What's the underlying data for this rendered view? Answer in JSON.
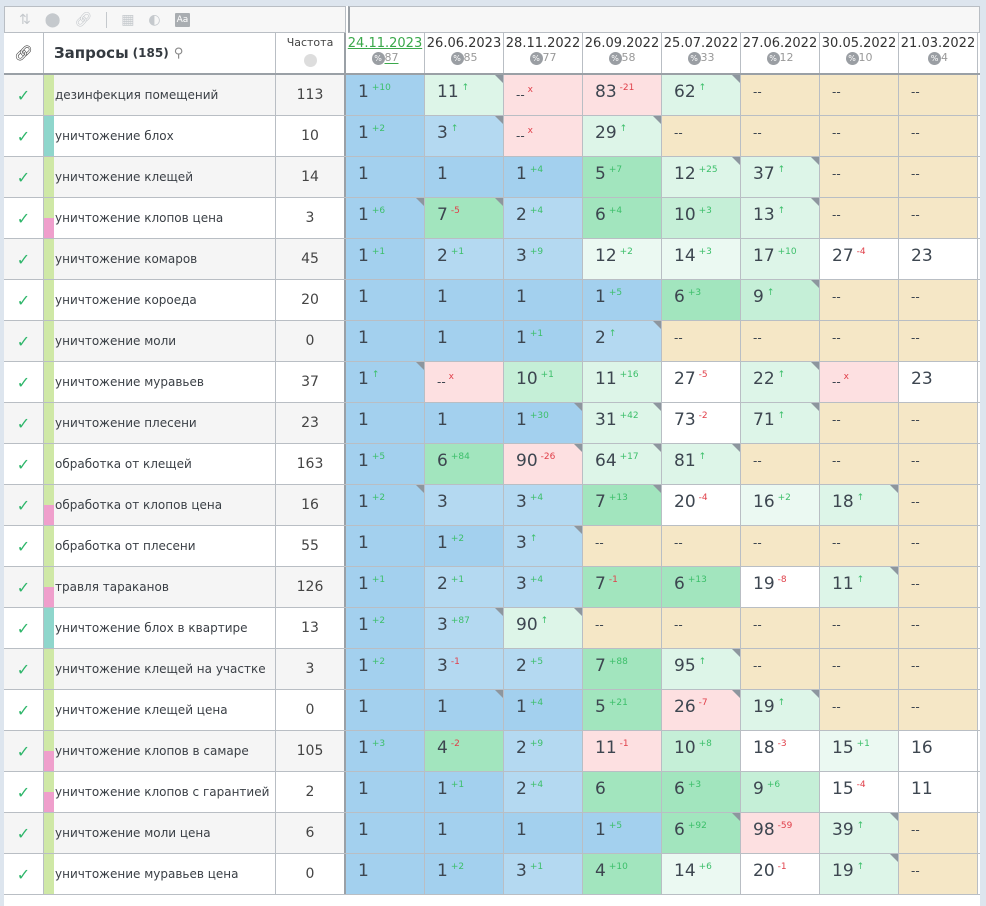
{
  "toolbar": {
    "icons": [
      "sort-icon",
      "toggle-icon",
      "link-icon",
      "calendar-icon",
      "contrast-icon",
      "font-icon"
    ],
    "font_label": "Aa"
  },
  "header": {
    "title": "Запросы",
    "count": "(185)",
    "freq_label": "Частота",
    "pct_symbol": "%",
    "dates": [
      {
        "date": "24.11.2023",
        "pct": "87",
        "active": true
      },
      {
        "date": "26.06.2023",
        "pct": "85"
      },
      {
        "date": "28.11.2022",
        "pct": "77"
      },
      {
        "date": "26.09.2022",
        "pct": "58"
      },
      {
        "date": "25.07.2022",
        "pct": "33"
      },
      {
        "date": "27.06.2022",
        "pct": "12"
      },
      {
        "date": "30.05.2022",
        "pct": "10"
      },
      {
        "date": "21.03.2022",
        "pct": "4"
      }
    ]
  },
  "colors": {
    "lime": "#cfe8a6",
    "teal": "#8fd6cc",
    "pink": "#ef9fcc",
    "check": "#2eb66a"
  },
  "rows": [
    {
      "kw": "дезинфекция помещений",
      "freq": "113",
      "tag": "lime",
      "cells": [
        [
          "1",
          "+10",
          "B",
          0
        ],
        [
          "11",
          "↑",
          "l",
          1
        ],
        [
          "--",
          "x",
          "p",
          0
        ],
        [
          "83",
          "-21",
          "p",
          0
        ],
        [
          "62",
          "↑",
          "l",
          1
        ],
        [
          "--",
          "",
          "y",
          0
        ],
        [
          "--",
          "",
          "y",
          0
        ],
        [
          "--",
          "",
          "y",
          0
        ]
      ]
    },
    {
      "kw": "уничтожение блох",
      "freq": "10",
      "tag": "teal",
      "cells": [
        [
          "1",
          "+2",
          "B",
          0
        ],
        [
          "3",
          "↑",
          "b",
          1
        ],
        [
          "--",
          "x",
          "p",
          0
        ],
        [
          "29",
          "↑",
          "l",
          1
        ],
        [
          "--",
          "",
          "y",
          0
        ],
        [
          "--",
          "",
          "y",
          0
        ],
        [
          "--",
          "",
          "y",
          0
        ],
        [
          "--",
          "",
          "y",
          0
        ]
      ]
    },
    {
      "kw": "уничтожение клещей",
      "freq": "14",
      "tag": "lime",
      "cells": [
        [
          "1",
          "",
          "B",
          0
        ],
        [
          "1",
          "",
          "B",
          0
        ],
        [
          "1",
          "+4",
          "B",
          0
        ],
        [
          "5",
          "+7",
          "G",
          0
        ],
        [
          "12",
          "+25",
          "l",
          1
        ],
        [
          "37",
          "↑",
          "l",
          1
        ],
        [
          "--",
          "",
          "y",
          0
        ],
        [
          "--",
          "",
          "y",
          0
        ]
      ]
    },
    {
      "kw": "уничтожение клопов цена",
      "freq": "3",
      "tag": "lime-pink",
      "cells": [
        [
          "1",
          "+6",
          "B",
          1
        ],
        [
          "7",
          "-5",
          "G",
          1
        ],
        [
          "2",
          "+4",
          "b",
          0
        ],
        [
          "6",
          "+4",
          "G",
          0
        ],
        [
          "10",
          "+3",
          "g",
          0
        ],
        [
          "13",
          "↑",
          "l",
          1
        ],
        [
          "--",
          "",
          "y",
          0
        ],
        [
          "--",
          "",
          "y",
          0
        ]
      ]
    },
    {
      "kw": "уничтожение комаров",
      "freq": "45",
      "tag": "lime",
      "cells": [
        [
          "1",
          "+1",
          "B",
          0
        ],
        [
          "2",
          "+1",
          "b",
          0
        ],
        [
          "3",
          "+9",
          "b",
          0
        ],
        [
          "12",
          "+2",
          "w",
          0
        ],
        [
          "14",
          "+3",
          "w",
          0
        ],
        [
          "17",
          "+10",
          "l",
          0
        ],
        [
          "27",
          "-4",
          "W",
          0
        ],
        [
          "23",
          "",
          "W",
          0
        ]
      ]
    },
    {
      "kw": "уничтожение короеда",
      "freq": "20",
      "tag": "lime",
      "cells": [
        [
          "1",
          "",
          "B",
          0
        ],
        [
          "1",
          "",
          "B",
          0
        ],
        [
          "1",
          "",
          "B",
          0
        ],
        [
          "1",
          "+5",
          "B",
          0
        ],
        [
          "6",
          "+3",
          "G",
          0
        ],
        [
          "9",
          "↑",
          "g",
          1
        ],
        [
          "--",
          "",
          "y",
          0
        ],
        [
          "--",
          "",
          "y",
          0
        ]
      ]
    },
    {
      "kw": "уничтожение моли",
      "freq": "0",
      "tag": "lime",
      "cells": [
        [
          "1",
          "",
          "B",
          0
        ],
        [
          "1",
          "",
          "B",
          0
        ],
        [
          "1",
          "+1",
          "B",
          0
        ],
        [
          "2",
          "↑",
          "b",
          1
        ],
        [
          "--",
          "",
          "y",
          0
        ],
        [
          "--",
          "",
          "y",
          0
        ],
        [
          "--",
          "",
          "y",
          0
        ],
        [
          "--",
          "",
          "y",
          0
        ]
      ]
    },
    {
      "kw": "уничтожение муравьев",
      "freq": "37",
      "tag": "lime",
      "cells": [
        [
          "1",
          "↑",
          "B",
          1
        ],
        [
          "--",
          "x",
          "p",
          0
        ],
        [
          "10",
          "+1",
          "g",
          0
        ],
        [
          "11",
          "+16",
          "l",
          0
        ],
        [
          "27",
          "-5",
          "W",
          0
        ],
        [
          "22",
          "↑",
          "l",
          1
        ],
        [
          "--",
          "x",
          "p",
          0
        ],
        [
          "23",
          "",
          "W",
          0
        ]
      ]
    },
    {
      "kw": "уничтожение плесени",
      "freq": "23",
      "tag": "lime",
      "cells": [
        [
          "1",
          "",
          "B",
          0
        ],
        [
          "1",
          "",
          "B",
          0
        ],
        [
          "1",
          "+30",
          "B",
          1
        ],
        [
          "31",
          "+42",
          "l",
          1
        ],
        [
          "73",
          "-2",
          "W",
          0
        ],
        [
          "71",
          "↑",
          "l",
          1
        ],
        [
          "--",
          "",
          "y",
          0
        ],
        [
          "--",
          "",
          "y",
          0
        ]
      ]
    },
    {
      "kw": "обработка от клещей",
      "freq": "163",
      "tag": "lime",
      "cells": [
        [
          "1",
          "+5",
          "B",
          0
        ],
        [
          "6",
          "+84",
          "G",
          0
        ],
        [
          "90",
          "-26",
          "p",
          1
        ],
        [
          "64",
          "+17",
          "l",
          1
        ],
        [
          "81",
          "↑",
          "l",
          1
        ],
        [
          "--",
          "",
          "y",
          0
        ],
        [
          "--",
          "",
          "y",
          0
        ],
        [
          "--",
          "",
          "y",
          0
        ]
      ]
    },
    {
      "kw": "обработка от клопов цена",
      "freq": "16",
      "tag": "lime-pink",
      "cells": [
        [
          "1",
          "+2",
          "B",
          1
        ],
        [
          "3",
          "",
          "b",
          0
        ],
        [
          "3",
          "+4",
          "b",
          0
        ],
        [
          "7",
          "+13",
          "G",
          1
        ],
        [
          "20",
          "-4",
          "W",
          0
        ],
        [
          "16",
          "+2",
          "w",
          0
        ],
        [
          "18",
          "↑",
          "l",
          1
        ],
        [
          "--",
          "",
          "y",
          0
        ]
      ]
    },
    {
      "kw": "обработка от плесени",
      "freq": "55",
      "tag": "lime",
      "cells": [
        [
          "1",
          "",
          "B",
          0
        ],
        [
          "1",
          "+2",
          "B",
          0
        ],
        [
          "3",
          "↑",
          "b",
          1
        ],
        [
          "--",
          "",
          "y",
          0
        ],
        [
          "--",
          "",
          "y",
          0
        ],
        [
          "--",
          "",
          "y",
          0
        ],
        [
          "--",
          "",
          "y",
          0
        ],
        [
          "--",
          "",
          "y",
          0
        ]
      ]
    },
    {
      "kw": "травля тараканов",
      "freq": "126",
      "tag": "lime-pink",
      "cells": [
        [
          "1",
          "+1",
          "B",
          0
        ],
        [
          "2",
          "+1",
          "b",
          0
        ],
        [
          "3",
          "+4",
          "b",
          0
        ],
        [
          "7",
          "-1",
          "G",
          0
        ],
        [
          "6",
          "+13",
          "G",
          0
        ],
        [
          "19",
          "-8",
          "W",
          0
        ],
        [
          "11",
          "↑",
          "l",
          1
        ],
        [
          "--",
          "",
          "y",
          0
        ]
      ]
    },
    {
      "kw": "уничтожение блох в квартире",
      "freq": "13",
      "tag": "teal",
      "cells": [
        [
          "1",
          "+2",
          "B",
          0
        ],
        [
          "3",
          "+87",
          "b",
          1
        ],
        [
          "90",
          "↑",
          "l",
          1
        ],
        [
          "--",
          "",
          "y",
          0
        ],
        [
          "--",
          "",
          "y",
          0
        ],
        [
          "--",
          "",
          "y",
          0
        ],
        [
          "--",
          "",
          "y",
          0
        ],
        [
          "--",
          "",
          "y",
          0
        ]
      ]
    },
    {
      "kw": "уничтожение клещей на участке",
      "freq": "3",
      "tag": "lime",
      "cells": [
        [
          "1",
          "+2",
          "B",
          0
        ],
        [
          "3",
          "-1",
          "b",
          0
        ],
        [
          "2",
          "+5",
          "b",
          0
        ],
        [
          "7",
          "+88",
          "G",
          0
        ],
        [
          "95",
          "↑",
          "l",
          1
        ],
        [
          "--",
          "",
          "y",
          0
        ],
        [
          "--",
          "",
          "y",
          0
        ],
        [
          "--",
          "",
          "y",
          0
        ]
      ]
    },
    {
      "kw": "уничтожение клещей цена",
      "freq": "0",
      "tag": "lime",
      "cells": [
        [
          "1",
          "",
          "B",
          0
        ],
        [
          "1",
          "",
          "B",
          1
        ],
        [
          "1",
          "+4",
          "B",
          0
        ],
        [
          "5",
          "+21",
          "G",
          0
        ],
        [
          "26",
          "-7",
          "p",
          1
        ],
        [
          "19",
          "↑",
          "l",
          1
        ],
        [
          "--",
          "",
          "y",
          0
        ],
        [
          "--",
          "",
          "y",
          0
        ]
      ]
    },
    {
      "kw": "уничтожение клопов в самаре",
      "freq": "105",
      "tag": "lime-pink",
      "cells": [
        [
          "1",
          "+3",
          "B",
          0
        ],
        [
          "4",
          "-2",
          "G",
          0
        ],
        [
          "2",
          "+9",
          "b",
          0
        ],
        [
          "11",
          "-1",
          "p",
          0
        ],
        [
          "10",
          "+8",
          "g",
          0
        ],
        [
          "18",
          "-3",
          "W",
          0
        ],
        [
          "15",
          "+1",
          "w",
          0
        ],
        [
          "16",
          "",
          "W",
          0
        ]
      ]
    },
    {
      "kw": "уничтожение клопов с гарантией",
      "freq": "2",
      "tag": "lime-pink",
      "cells": [
        [
          "1",
          "",
          "B",
          0
        ],
        [
          "1",
          "+1",
          "B",
          0
        ],
        [
          "2",
          "+4",
          "b",
          0
        ],
        [
          "6",
          "",
          "G",
          0
        ],
        [
          "6",
          "+3",
          "G",
          0
        ],
        [
          "9",
          "+6",
          "g",
          0
        ],
        [
          "15",
          "-4",
          "W",
          0
        ],
        [
          "11",
          "",
          "W",
          0
        ]
      ]
    },
    {
      "kw": "уничтожение моли цена",
      "freq": "6",
      "tag": "lime",
      "cells": [
        [
          "1",
          "",
          "B",
          0
        ],
        [
          "1",
          "",
          "B",
          0
        ],
        [
          "1",
          "",
          "B",
          0
        ],
        [
          "1",
          "+5",
          "B",
          0
        ],
        [
          "6",
          "+92",
          "G",
          1
        ],
        [
          "98",
          "-59",
          "p",
          0
        ],
        [
          "39",
          "↑",
          "l",
          1
        ],
        [
          "--",
          "",
          "y",
          0
        ]
      ]
    },
    {
      "kw": "уничтожение муравьев цена",
      "freq": "0",
      "tag": "lime",
      "cells": [
        [
          "1",
          "",
          "B",
          0
        ],
        [
          "1",
          "+2",
          "B",
          0
        ],
        [
          "3",
          "+1",
          "b",
          0
        ],
        [
          "4",
          "+10",
          "G",
          0
        ],
        [
          "14",
          "+6",
          "w",
          0
        ],
        [
          "20",
          "-1",
          "W",
          0
        ],
        [
          "19",
          "↑",
          "l",
          1
        ],
        [
          "--",
          "",
          "y",
          0
        ]
      ]
    }
  ]
}
